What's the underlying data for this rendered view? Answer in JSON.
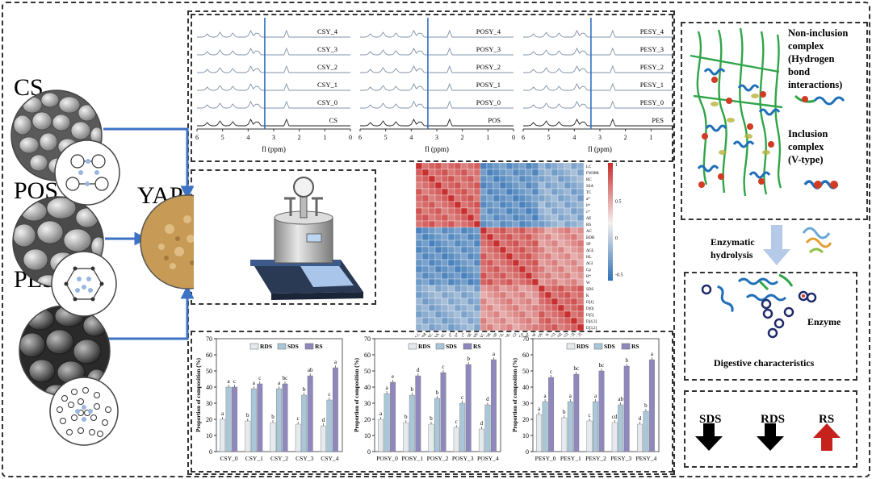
{
  "starches": {
    "cs": "CS",
    "pos": "POS",
    "pes": "PES",
    "yap": "YAP"
  },
  "nmr": {
    "xlabel": "fl (ppm)",
    "ticks": [
      "6",
      "5",
      "4",
      "3",
      "2",
      "1",
      "0"
    ],
    "panels": [
      {
        "labels": [
          "CSY_4",
          "CSY_3",
          "CSY_2",
          "CSY_1",
          "CSY_0",
          "CS"
        ]
      },
      {
        "labels": [
          "POSY_4",
          "POSY_3",
          "POSY_2",
          "POSY_1",
          "POSY_0",
          "POS"
        ]
      },
      {
        "labels": [
          "PESY_4",
          "PESY_3",
          "PESY_2",
          "PESY_1",
          "PESY_0",
          "PES"
        ]
      }
    ]
  },
  "heatmap": {
    "row_labels": [
      "LC",
      "FWHM",
      "RC",
      "SSA",
      "TC",
      "a*",
      "b*",
      "c*",
      "ΔE",
      "RS",
      "AC",
      "BDR",
      "SP",
      "ΔGL",
      "HL",
      "ΔGl",
      "Cp",
      "H*",
      "W",
      "SDS",
      "K",
      "D[1]",
      "D[0]",
      "D[5]",
      "D[4,3]",
      "D[3,2]"
    ],
    "scale": [
      "1",
      "0.5",
      "0",
      "-0.5"
    ],
    "colors": {
      "pos": "#c8302f",
      "neg": "#2c6fb4",
      "mid": "#f4f0ee"
    }
  },
  "right_panel": {
    "non_inclusion_1": "Non-inclusion",
    "non_inclusion_2": "complex",
    "non_inclusion_3": "(Hydrogen",
    "non_inclusion_4": "bond",
    "non_inclusion_5": "interactions)",
    "inclusion_1": "Inclusion",
    "inclusion_2": "complex",
    "inclusion_3": "(V-type)",
    "enzymatic_1": "Enzymatic",
    "enzymatic_2": "hydrolysis",
    "enzyme": "Enzyme",
    "digestive": "Digestive characteristics",
    "sds": "SDS",
    "rds": "RDS",
    "rs": "RS"
  },
  "chart_data": [
    {
      "type": "bar",
      "ylabel": "Proportion of composition (%)",
      "ylim": [
        0,
        70
      ],
      "yticks": [
        "0",
        "10",
        "20",
        "30",
        "40",
        "50",
        "60",
        "70"
      ],
      "categories": [
        "CSY_0",
        "CSY_1",
        "CSY_2",
        "CSY_3",
        "CSY_4"
      ],
      "legend": [
        "RDS",
        "SDS",
        "RS"
      ],
      "series": [
        {
          "name": "RDS",
          "values": [
            20,
            19,
            18,
            17,
            16
          ],
          "letters": [
            "a",
            "b",
            "b",
            "c",
            "d"
          ]
        },
        {
          "name": "SDS",
          "values": [
            40,
            39,
            39,
            35,
            32
          ],
          "letters": [
            "a",
            "a",
            "a",
            "b",
            "c"
          ]
        },
        {
          "name": "RS",
          "values": [
            40,
            42,
            42,
            47,
            52
          ],
          "letters": [
            "c",
            "c",
            "bc",
            "ab",
            "a"
          ]
        }
      ]
    },
    {
      "type": "bar",
      "ylabel": "Proportion of composition (%)",
      "ylim": [
        0,
        70
      ],
      "yticks": [
        "0",
        "10",
        "20",
        "30",
        "40",
        "50",
        "60",
        "70"
      ],
      "categories": [
        "POSY_0",
        "POSY_1",
        "POSY_2",
        "POSY_3",
        "POSY_4"
      ],
      "legend": [
        "RDS",
        "SDS",
        "RS"
      ],
      "series": [
        {
          "name": "RDS",
          "values": [
            20,
            18,
            17,
            15,
            14
          ],
          "letters": [
            "a",
            "b",
            "b",
            "c",
            "d"
          ]
        },
        {
          "name": "SDS",
          "values": [
            36,
            35,
            33,
            30,
            29
          ],
          "letters": [
            "a",
            "b",
            "b",
            "c",
            "d"
          ]
        },
        {
          "name": "RS",
          "values": [
            43,
            47,
            49,
            54,
            57
          ],
          "letters": [
            "e",
            "d",
            "c",
            "b",
            "a"
          ]
        }
      ]
    },
    {
      "type": "bar",
      "ylabel": "Proportion of composition (%)",
      "ylim": [
        0,
        70
      ],
      "yticks": [
        "0",
        "10",
        "20",
        "30",
        "40",
        "50",
        "60",
        "70"
      ],
      "categories": [
        "PESY_0",
        "PESY_1",
        "PESY_2",
        "PESY_3",
        "PESY_4"
      ],
      "legend": [
        "RDS",
        "SDS",
        "RS"
      ],
      "series": [
        {
          "name": "RDS",
          "values": [
            23,
            21,
            19,
            18,
            17
          ],
          "letters": [
            "a",
            "b",
            "c",
            "cd",
            "d"
          ]
        },
        {
          "name": "SDS",
          "values": [
            31,
            31,
            31,
            29,
            25
          ],
          "letters": [
            "a",
            "a",
            "a",
            "ab",
            "b"
          ]
        },
        {
          "name": "RS",
          "values": [
            46,
            48,
            50,
            53,
            57
          ],
          "letters": [
            "c",
            "bc",
            "bc",
            "b",
            "a"
          ]
        }
      ]
    }
  ]
}
